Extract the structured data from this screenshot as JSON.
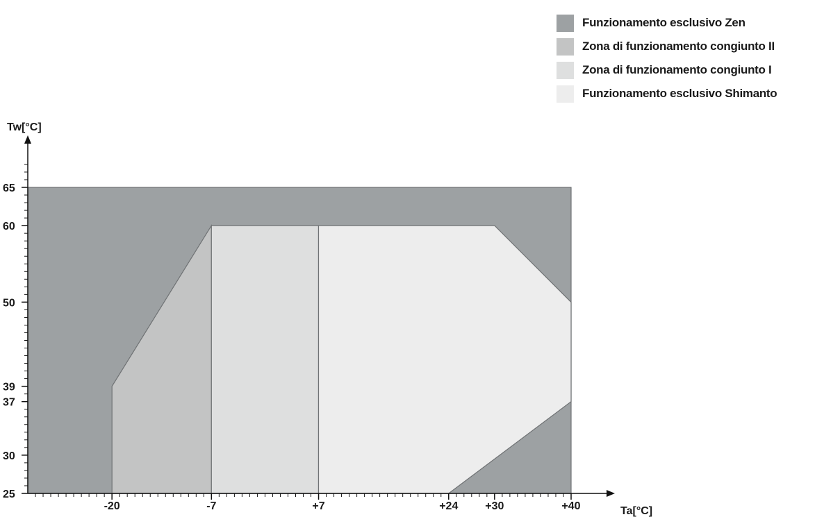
{
  "chart_data": {
    "type": "area",
    "xlabel": "Ta[°C]",
    "ylabel": "Tw[°C]",
    "xlim": [
      -31,
      40
    ],
    "ylim": [
      25,
      65
    ],
    "x_ticks": [
      {
        "value": -20,
        "label": "-20"
      },
      {
        "value": -7,
        "label": "-7"
      },
      {
        "value": 7,
        "label": "+7"
      },
      {
        "value": 24,
        "label": "+24"
      },
      {
        "value": 30,
        "label": "+30"
      },
      {
        "value": 40,
        "label": "+40"
      }
    ],
    "y_ticks": [
      {
        "value": 25,
        "label": "25"
      },
      {
        "value": 30,
        "label": "30"
      },
      {
        "value": 37,
        "label": "37"
      },
      {
        "value": 39,
        "label": "39"
      },
      {
        "value": 50,
        "label": "50"
      },
      {
        "value": 60,
        "label": "60"
      },
      {
        "value": 65,
        "label": "65"
      }
    ],
    "series": [
      {
        "name": "Funzionamento esclusivo Zen",
        "color": "#9da1a3",
        "points": [
          [
            -31,
            25
          ],
          [
            -31,
            65
          ],
          [
            40,
            65
          ],
          [
            40,
            25
          ]
        ]
      },
      {
        "name": "Zona di funzionamento congiunto II",
        "color": "#c3c4c4",
        "points": [
          [
            -20,
            25
          ],
          [
            -20,
            39
          ],
          [
            -7,
            60
          ],
          [
            -7,
            25
          ]
        ]
      },
      {
        "name": "Zona di funzionamento congiunto I",
        "color": "#dedfdf",
        "points": [
          [
            -7,
            25
          ],
          [
            -7,
            60
          ],
          [
            7,
            60
          ],
          [
            7,
            25
          ]
        ]
      },
      {
        "name": "Funzionamento esclusivo Shimanto",
        "color": "#ededed",
        "points": [
          [
            7,
            25
          ],
          [
            7,
            60
          ],
          [
            30,
            60
          ],
          [
            40,
            50
          ],
          [
            40,
            37
          ],
          [
            24,
            25
          ]
        ]
      }
    ],
    "grid": false,
    "legend_position": "top-right"
  }
}
